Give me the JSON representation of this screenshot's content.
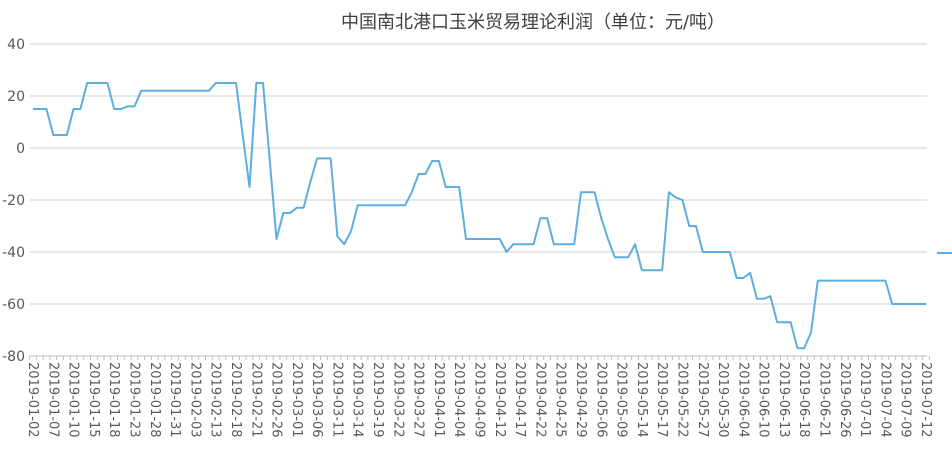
{
  "chart_data": {
    "type": "line",
    "title": "中国南北港口玉米贸易理论利润（单位：元/吨）",
    "xlabel": "",
    "ylabel": "",
    "ylim": [
      -80,
      40
    ],
    "yticks": [
      40,
      20,
      0,
      -20,
      -40,
      -60,
      -80
    ],
    "grid": true,
    "legend": "right",
    "line_color": "#5dade2",
    "x_tick_labels": [
      "2019-01-02",
      "2019-01-07",
      "2019-01-10",
      "2019-01-15",
      "2019-01-18",
      "2019-01-23",
      "2019-01-28",
      "2019-01-31",
      "2019-02-03",
      "2019-02-13",
      "2019-02-18",
      "2019-02-21",
      "2019-02-26",
      "2019-03-01",
      "2019-03-06",
      "2019-03-11",
      "2019-03-14",
      "2019-03-19",
      "2019-03-22",
      "2019-03-27",
      "2019-04-01",
      "2019-04-04",
      "2019-04-09",
      "2019-04-12",
      "2019-04-17",
      "2019-04-22",
      "2019-04-25",
      "2019-04-29",
      "2019-05-06",
      "2019-05-09",
      "2019-05-14",
      "2019-05-17",
      "2019-05-22",
      "2019-05-27",
      "2019-05-30",
      "2019-06-04",
      "2019-06-10",
      "2019-06-13",
      "2019-06-18",
      "2019-06-21",
      "2019-06-26",
      "2019-07-01",
      "2019-07-04",
      "2019-07-09",
      "2019-07-12"
    ],
    "x_tick_every": 3,
    "series": [
      {
        "values": [
          15,
          15,
          15,
          5,
          5,
          5,
          15,
          15,
          25,
          25,
          25,
          25,
          15,
          15,
          16,
          16,
          22,
          22,
          22,
          22,
          22,
          22,
          22,
          22,
          22,
          22,
          22,
          25,
          25,
          25,
          25,
          5,
          -15,
          25,
          25,
          -5,
          -35,
          -25,
          -25,
          -23,
          -23,
          -13,
          -4,
          -4,
          -4,
          -34,
          -37,
          -32,
          -22,
          -22,
          -22,
          -22,
          -22,
          -22,
          -22,
          -22,
          -17,
          -10,
          -10,
          -5,
          -5,
          -15,
          -15,
          -15,
          -35,
          -35,
          -35,
          -35,
          -35,
          -35,
          -40,
          -37,
          -37,
          -37,
          -37,
          -27,
          -27,
          -37,
          -37,
          -37,
          -37,
          -17,
          -17,
          -17,
          -27,
          -35,
          -42,
          -42,
          -42,
          -37,
          -47,
          -47,
          -47,
          -47,
          -17,
          -19,
          -20,
          -30,
          -30,
          -40,
          -40,
          -40,
          -40,
          -40,
          -50,
          -50,
          -48,
          -58,
          -58,
          -57,
          -67,
          -67,
          -67,
          -77,
          -77,
          -71,
          -51,
          -51,
          -51,
          -51,
          -51,
          -51,
          -51,
          -51,
          -51,
          -51,
          -51,
          -60,
          -60,
          -60,
          -60,
          -60,
          -60
        ]
      }
    ]
  }
}
